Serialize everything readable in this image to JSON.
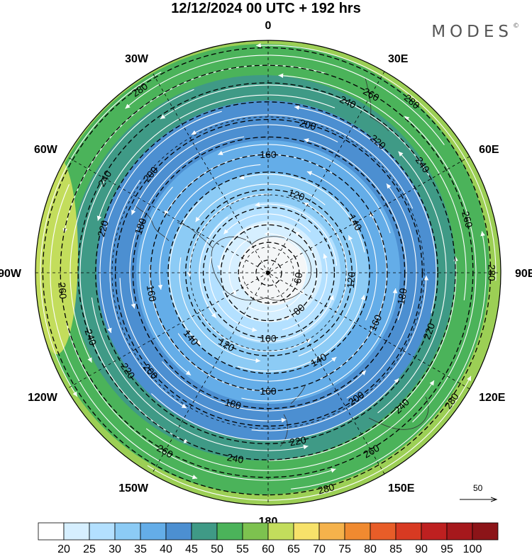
{
  "title": "12/12/2024  00 UTC  + 192 hrs",
  "brand": "MODES",
  "brand_mark": "©",
  "longitude_labels": [
    {
      "lon": 0,
      "text": "0"
    },
    {
      "lon": 30,
      "text": "30E"
    },
    {
      "lon": 60,
      "text": "60E"
    },
    {
      "lon": 90,
      "text": "90E"
    },
    {
      "lon": 120,
      "text": "120E"
    },
    {
      "lon": 150,
      "text": "150E"
    },
    {
      "lon": 180,
      "text": "180"
    },
    {
      "lon": -150,
      "text": "150W"
    },
    {
      "lon": -120,
      "text": "120W"
    },
    {
      "lon": -90,
      "text": "90W"
    },
    {
      "lon": -60,
      "text": "60W"
    },
    {
      "lon": -30,
      "text": "30W"
    }
  ],
  "contour_labels": [
    {
      "value": "60",
      "ring": 60,
      "lon": 100
    },
    {
      "value": "80",
      "ring": 80,
      "lon": 140
    },
    {
      "value": "100",
      "ring": 100,
      "lon": 180
    },
    {
      "value": "120",
      "ring": 120,
      "lon": 95
    },
    {
      "value": "120",
      "ring": 120,
      "lon": 20
    },
    {
      "value": "120",
      "ring": 120,
      "lon": -150
    },
    {
      "value": "140",
      "ring": 140,
      "lon": 60
    },
    {
      "value": "140",
      "ring": 140,
      "lon": 150
    },
    {
      "value": "140",
      "ring": 140,
      "lon": -130
    },
    {
      "value": "160",
      "ring": 160,
      "lon": 0
    },
    {
      "value": "160",
      "ring": 160,
      "lon": 180
    },
    {
      "value": "160",
      "ring": 160,
      "lon": -100
    },
    {
      "value": "160",
      "ring": 160,
      "lon": 115
    },
    {
      "value": "180",
      "ring": 180,
      "lon": -70
    },
    {
      "value": "180",
      "ring": 180,
      "lon": -165
    },
    {
      "value": "180",
      "ring": 180,
      "lon": 100
    },
    {
      "value": "200",
      "ring": 200,
      "lon": -50
    },
    {
      "value": "200",
      "ring": 200,
      "lon": 15
    },
    {
      "value": "200",
      "ring": 200,
      "lon": -130
    },
    {
      "value": "200",
      "ring": 200,
      "lon": 145
    },
    {
      "value": "220",
      "ring": 220,
      "lon": 40
    },
    {
      "value": "220",
      "ring": 220,
      "lon": -75
    },
    {
      "value": "220",
      "ring": 220,
      "lon": -125
    },
    {
      "value": "220",
      "ring": 220,
      "lon": 110
    },
    {
      "value": "220",
      "ring": 220,
      "lon": 170
    },
    {
      "value": "240",
      "ring": 240,
      "lon": 55
    },
    {
      "value": "240",
      "ring": 240,
      "lon": -60
    },
    {
      "value": "240",
      "ring": 240,
      "lon": -110
    },
    {
      "value": "240",
      "ring": 240,
      "lon": 135
    },
    {
      "value": "240",
      "ring": 240,
      "lon": 25
    },
    {
      "value": "240",
      "ring": 240,
      "lon": -170
    },
    {
      "value": "260",
      "ring": 260,
      "lon": 75
    },
    {
      "value": "260",
      "ring": 260,
      "lon": -95
    },
    {
      "value": "260",
      "ring": 260,
      "lon": -150
    },
    {
      "value": "260",
      "ring": 260,
      "lon": 150
    },
    {
      "value": "260",
      "ring": 260,
      "lon": 30
    },
    {
      "value": "280",
      "ring": 280,
      "lon": 40
    },
    {
      "value": "280",
      "ring": 280,
      "lon": 125
    },
    {
      "value": "280",
      "ring": 280,
      "lon": 165
    },
    {
      "value": "280",
      "ring": 280,
      "lon": -35
    },
    {
      "value": "280",
      "ring": 280,
      "lon": 90
    }
  ],
  "reference_vector": {
    "value": "50"
  },
  "colorbar": {
    "ticks": [
      "20",
      "25",
      "30",
      "35",
      "40",
      "45",
      "50",
      "55",
      "60",
      "65",
      "70",
      "75",
      "80",
      "85",
      "90",
      "95",
      "100"
    ],
    "colors": [
      "#ffffff",
      "#d6efff",
      "#b3e0ff",
      "#8ccbf5",
      "#64ade8",
      "#4c8fd1",
      "#3f9a86",
      "#4bb35a",
      "#7dc24f",
      "#c3dd5c",
      "#f7e26a",
      "#f5b24b",
      "#f08a30",
      "#e85d28",
      "#d83a22",
      "#be2020",
      "#a6181c",
      "#8c1418"
    ]
  },
  "colors": {
    "contour": "#000000",
    "streamline": "#ffffff",
    "coast": "#333333"
  }
}
